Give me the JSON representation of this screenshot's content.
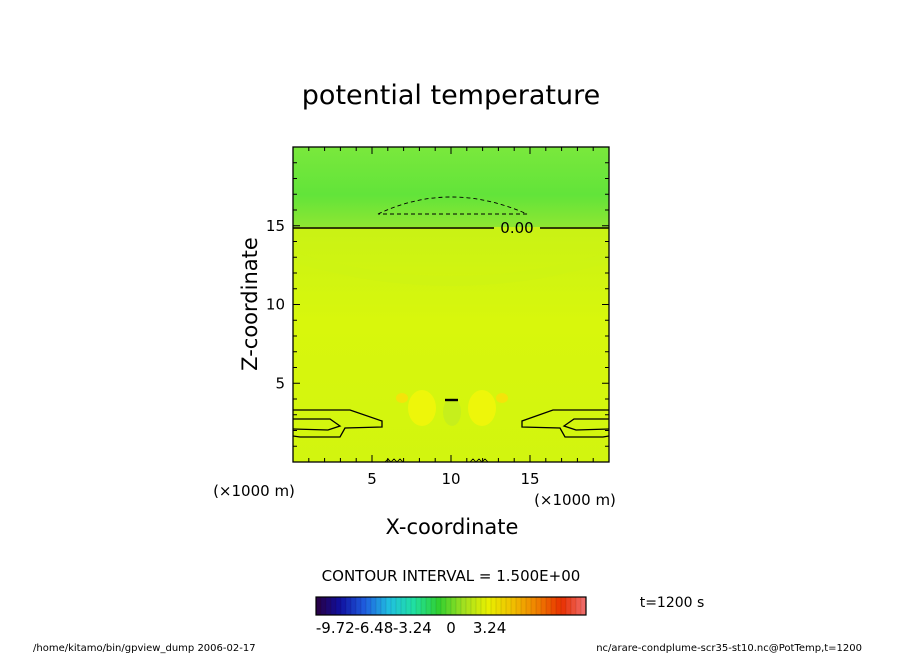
{
  "chart_data": {
    "type": "heatmap",
    "title": "potential temperature",
    "xlabel": "X-coordinate",
    "ylabel": "Z-coordinate",
    "x_unit": "(×1000 m)",
    "z_unit": "(×1000 m)",
    "xlim": [
      0,
      20
    ],
    "ylim": [
      0,
      20
    ],
    "x_ticks": [
      5,
      10,
      15
    ],
    "y_ticks": [
      5,
      10,
      15
    ],
    "contour_interval_text": "CONTOUR INTERVAL = 1.500E+00",
    "contour_label": "0.00",
    "time_label": "t=1200 s",
    "colorbar": {
      "labels": [
        "-9.72",
        "-6.48",
        "-3.24",
        "0",
        "3.24"
      ],
      "label_values": [
        -9.72,
        -6.48,
        -3.24,
        0,
        3.24
      ],
      "range": [
        -11.34,
        11.34
      ],
      "colors": [
        "#2a0040",
        "#1010a0",
        "#1f5fe0",
        "#20c0e0",
        "#20e0a0",
        "#30d030",
        "#a0e020",
        "#e8f000",
        "#f0c000",
        "#f08000",
        "#e83000",
        "#f07070"
      ]
    },
    "field_colors": {
      "upper_layer": "#6ee83a",
      "lower_layer": "#d6f50e",
      "band_edge": "#9ae830"
    }
  },
  "footer": {
    "left": "/home/kitamo/bin/gpview_dump   2006-02-17",
    "right": "nc/arare-condplume-scr35-st10.nc@PotTemp,t=1200"
  }
}
